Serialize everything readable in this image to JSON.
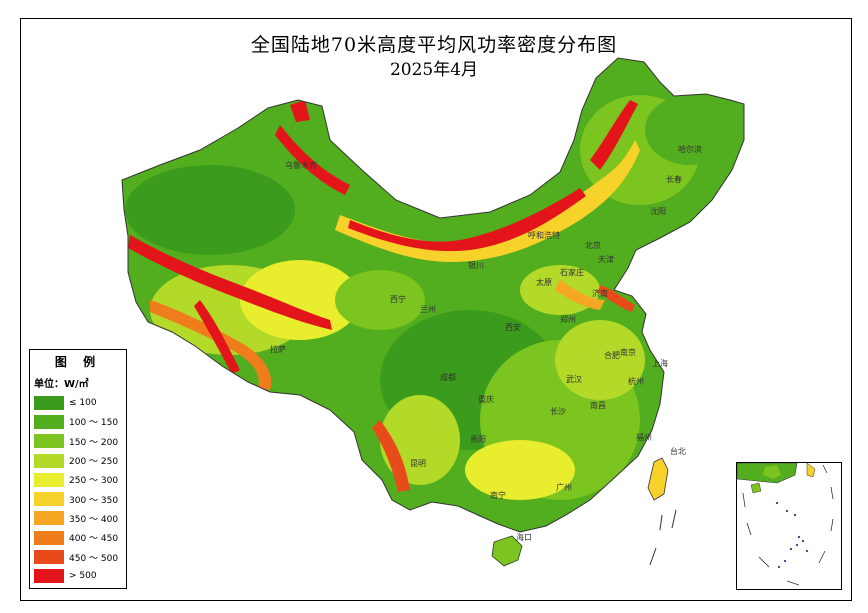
{
  "title": "全国陆地70米高度平均风功率密度分布图",
  "subtitle": "2025年4月",
  "legend": {
    "title": "图 例",
    "unit_label": "单位：W/㎡",
    "items": [
      {
        "label": "≤ 100",
        "color": "#3a9b1c"
      },
      {
        "label": "100 ～ 150",
        "color": "#52ad1f"
      },
      {
        "label": "150 ～ 200",
        "color": "#7cc41f"
      },
      {
        "label": "200 ～ 250",
        "color": "#b3d929"
      },
      {
        "label": "250 ～ 300",
        "color": "#e8ee2e"
      },
      {
        "label": "300 ～ 350",
        "color": "#f7d22a"
      },
      {
        "label": "350 ～ 400",
        "color": "#f5a623"
      },
      {
        "label": "400 ～ 450",
        "color": "#f07d1c"
      },
      {
        "label": "450 ～ 500",
        "color": "#e84a1a"
      },
      {
        "label": "> 500",
        "color": "#e3141a"
      }
    ]
  },
  "cities": {
    "wulumuqi": "乌鲁木齐",
    "lasa": "拉萨",
    "xining": "西宁",
    "lanzhou": "兰州",
    "yinchuan": "银川",
    "huhehaote": "呼和浩特",
    "beijing": "北京",
    "tianjin": "天津",
    "shijiazhuang": "石家庄",
    "taiyuan": "太原",
    "jinan": "济南",
    "zhengzhou": "郑州",
    "xian": "西安",
    "chengdu": "成都",
    "chongqing": "重庆",
    "wuhan": "武汉",
    "hefei": "合肥",
    "nanjing": "南京",
    "shanghai": "上海",
    "hangzhou": "杭州",
    "nanchang": "南昌",
    "changsha": "长沙",
    "guiyang": "贵阳",
    "kunming": "昆明",
    "nanning": "南宁",
    "guangzhou": "广州",
    "fuzhou": "福州",
    "taibei": "台北",
    "haikou": "海口",
    "haerbin": "哈尔滨",
    "changchun": "长春",
    "shenyang": "沈阳"
  }
}
